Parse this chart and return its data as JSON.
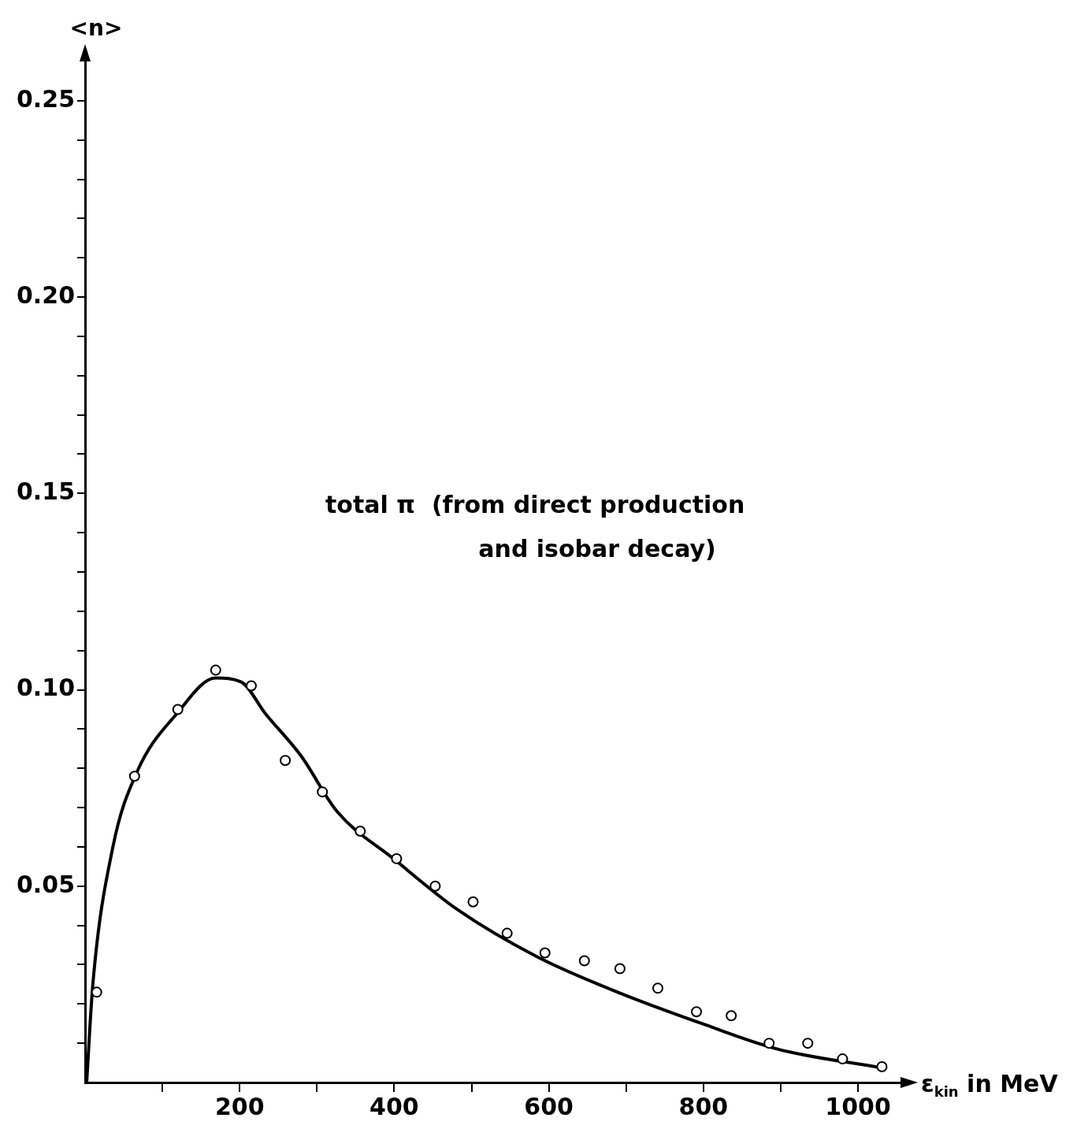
{
  "chart_data": {
    "type": "scatter",
    "xlabel": "ε$_{kin}$ in MeV",
    "ylabel": "<n>",
    "annotations": [
      "total π  (from direct production and isobar decay)"
    ],
    "xlim": [
      0,
      1055
    ],
    "xticks": [
      {
        "value": 100,
        "label": null
      },
      200,
      {
        "value": 300,
        "label": null
      },
      400,
      {
        "value": 500,
        "label": null
      },
      600,
      {
        "value": 700,
        "label": null
      },
      800,
      {
        "value": 900,
        "label": null
      },
      1000
    ],
    "ylim": [
      0,
      0.26
    ],
    "yticks": [
      {
        "value": 0.01,
        "label": null
      },
      {
        "value": 0.02,
        "label": null
      },
      {
        "value": 0.03,
        "label": null
      },
      {
        "value": 0.04,
        "label": null
      },
      {
        "value": 0.05,
        "label": "0.05"
      },
      {
        "value": 0.06,
        "label": null
      },
      {
        "value": 0.07,
        "label": null
      },
      {
        "value": 0.08,
        "label": null
      },
      {
        "value": 0.09,
        "label": null
      },
      {
        "value": 0.1,
        "label": "0.10"
      },
      {
        "value": 0.11,
        "label": null
      },
      {
        "value": 0.12,
        "label": null
      },
      {
        "value": 0.13,
        "label": null
      },
      {
        "value": 0.14,
        "label": null
      },
      {
        "value": 0.15,
        "label": "0.15"
      },
      {
        "value": 0.16,
        "label": null
      },
      {
        "value": 0.17,
        "label": null
      },
      {
        "value": 0.18,
        "label": null
      },
      {
        "value": 0.19,
        "label": null
      },
      {
        "value": 0.2,
        "label": "0.20"
      },
      {
        "value": 0.21,
        "label": null
      },
      {
        "value": 0.22,
        "label": null
      },
      {
        "value": 0.23,
        "label": null
      },
      {
        "value": 0.24,
        "label": null
      },
      {
        "value": 0.25,
        "label": "0.25"
      }
    ],
    "grid": false,
    "legend": false,
    "marker": "circle",
    "series": [
      {
        "type": "scatter",
        "color": "#000000",
        "x": [
          15,
          64,
          120,
          169,
          215,
          259,
          307,
          356,
          403,
          453,
          502,
          546,
          595,
          646,
          692,
          741,
          791,
          836,
          885,
          935,
          980,
          1031
        ],
        "values": [
          0.023,
          0.078,
          0.095,
          0.105,
          0.101,
          0.082,
          0.074,
          0.064,
          0.057,
          0.05,
          0.046,
          0.038,
          0.033,
          0.031,
          0.029,
          0.024,
          0.018,
          0.017,
          0.01,
          0.01,
          0.006,
          0.004
        ]
      },
      {
        "type": "line",
        "color": "#000000",
        "marker": "none",
        "x": [
          2,
          10,
          36,
          67,
          119,
          169,
          202,
          233,
          280,
          326,
          399,
          482,
          585,
          689,
          798,
          896,
          1031
        ],
        "values": [
          0,
          0.025,
          0.06,
          0.079,
          0.094,
          0.103,
          0.102,
          0.094,
          0.083,
          0.069,
          0.057,
          0.044,
          0.032,
          0.023,
          0.015,
          0.0085,
          0.0037
        ]
      }
    ]
  }
}
